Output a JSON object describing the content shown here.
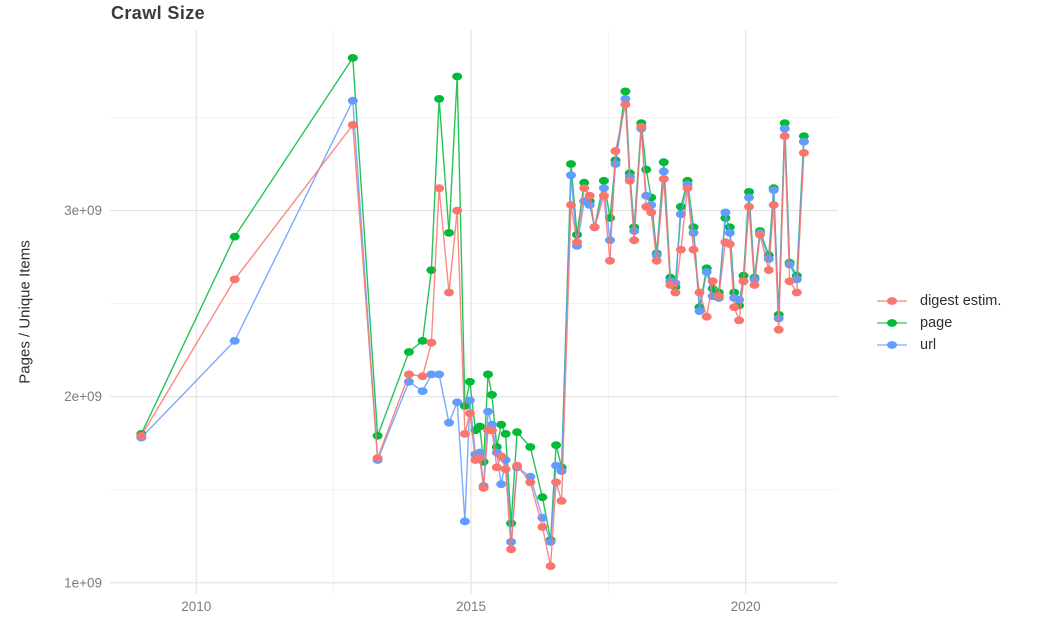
{
  "title": "Crawl Size",
  "ylabel": "Pages / Unique Items",
  "legend": {
    "position": "right",
    "items": [
      {
        "label": "digest estim.",
        "color": "#F8766D"
      },
      {
        "label": "page",
        "color": "#00BA38"
      },
      {
        "label": "url",
        "color": "#619CFF"
      }
    ]
  },
  "colors": {
    "background": "#ffffff",
    "grid_major": "#e3e3e3",
    "grid_minor": "#f0f0f0",
    "title_text": "#3c3c3c",
    "axis_text": "#7c7c7c"
  },
  "chart_data": {
    "type": "line",
    "title": "Crawl Size",
    "xlabel": "",
    "ylabel": "Pages / Unique Items",
    "values_unit": "1e9 (billions), matching axis labels 1e+09..3e+09",
    "xlim": [
      2008.43,
      2021.68
    ],
    "ylim": [
      0.94,
      3.97
    ],
    "grid": true,
    "legend_position": "right",
    "x_ticks": [
      {
        "v": 2010,
        "label": "2010"
      },
      {
        "v": 2015,
        "label": "2015"
      },
      {
        "v": 2020,
        "label": "2020"
      }
    ],
    "y_ticks": [
      {
        "v": 1,
        "label": "1e+09"
      },
      {
        "v": 2,
        "label": "2e+09"
      },
      {
        "v": 3,
        "label": "3e+09"
      }
    ],
    "x_minor": [
      2012.5,
      2017.5
    ],
    "y_minor": [
      1.5,
      2.5,
      3.5
    ],
    "x": [
      2009.0,
      2010.7,
      2012.85,
      2013.3,
      2013.87,
      2014.12,
      2014.28,
      2014.42,
      2014.6,
      2014.75,
      2014.89,
      2014.98,
      2015.08,
      2015.16,
      2015.23,
      2015.31,
      2015.38,
      2015.47,
      2015.55,
      2015.63,
      2015.73,
      2015.84,
      2016.08,
      2016.3,
      2016.45,
      2016.55,
      2016.65,
      2016.82,
      2016.93,
      2017.06,
      2017.16,
      2017.25,
      2017.42,
      2017.53,
      2017.63,
      2017.81,
      2017.89,
      2017.97,
      2018.1,
      2018.19,
      2018.28,
      2018.38,
      2018.51,
      2018.63,
      2018.72,
      2018.82,
      2018.94,
      2019.05,
      2019.16,
      2019.29,
      2019.4,
      2019.51,
      2019.63,
      2019.71,
      2019.79,
      2019.88,
      2019.96,
      2020.06,
      2020.16,
      2020.26,
      2020.42,
      2020.51,
      2020.6,
      2020.71,
      2020.8,
      2020.93,
      2021.06
    ],
    "series": [
      {
        "name": "digest estim.",
        "color": "#F8766D",
        "values": [
          1.79,
          2.63,
          3.46,
          1.67,
          2.12,
          2.11,
          2.29,
          3.12,
          2.56,
          3.0,
          1.8,
          1.91,
          1.66,
          1.67,
          1.51,
          1.82,
          1.82,
          1.62,
          1.68,
          1.61,
          1.18,
          1.63,
          1.54,
          1.3,
          1.09,
          1.54,
          1.44,
          3.03,
          2.83,
          3.12,
          3.08,
          2.91,
          3.08,
          2.73,
          3.32,
          3.57,
          3.16,
          2.84,
          3.45,
          3.02,
          2.99,
          2.73,
          3.17,
          2.6,
          2.56,
          2.79,
          3.12,
          2.79,
          2.56,
          2.43,
          2.62,
          2.54,
          2.83,
          2.82,
          2.48,
          2.41,
          2.62,
          3.02,
          2.6,
          2.87,
          2.68,
          3.03,
          2.36,
          3.4,
          2.62,
          2.56,
          3.31
        ]
      },
      {
        "name": "page",
        "color": "#00BA38",
        "values": [
          1.8,
          2.86,
          3.82,
          1.79,
          2.24,
          2.3,
          2.68,
          3.6,
          2.88,
          3.72,
          1.95,
          2.08,
          1.82,
          1.84,
          1.65,
          2.12,
          2.01,
          1.73,
          1.85,
          1.8,
          1.32,
          1.81,
          1.73,
          1.46,
          1.23,
          1.74,
          1.62,
          3.25,
          2.87,
          3.15,
          3.05,
          2.91,
          3.16,
          2.96,
          3.27,
          3.64,
          3.2,
          2.91,
          3.47,
          3.22,
          3.07,
          2.77,
          3.26,
          2.64,
          2.59,
          3.02,
          3.16,
          2.91,
          2.48,
          2.69,
          2.58,
          2.56,
          2.96,
          2.91,
          2.56,
          2.49,
          2.65,
          3.1,
          2.64,
          2.89,
          2.76,
          3.12,
          2.44,
          3.47,
          2.72,
          2.65,
          3.4
        ]
      },
      {
        "name": "url",
        "color": "#619CFF",
        "values": [
          1.78,
          2.3,
          3.59,
          1.66,
          2.08,
          2.03,
          2.12,
          2.12,
          1.86,
          1.97,
          1.33,
          1.98,
          1.69,
          1.7,
          1.52,
          1.92,
          1.85,
          1.7,
          1.53,
          1.66,
          1.22,
          1.62,
          1.57,
          1.35,
          1.22,
          1.63,
          1.6,
          3.19,
          2.81,
          3.05,
          3.03,
          2.91,
          3.12,
          2.84,
          3.25,
          3.6,
          3.18,
          2.89,
          3.44,
          3.08,
          3.03,
          2.76,
          3.21,
          2.62,
          2.61,
          2.98,
          3.14,
          2.88,
          2.46,
          2.67,
          2.54,
          2.53,
          2.99,
          2.88,
          2.53,
          2.52,
          2.62,
          3.07,
          2.63,
          2.88,
          2.74,
          3.11,
          2.42,
          3.44,
          2.71,
          2.63,
          3.37
        ]
      }
    ]
  }
}
